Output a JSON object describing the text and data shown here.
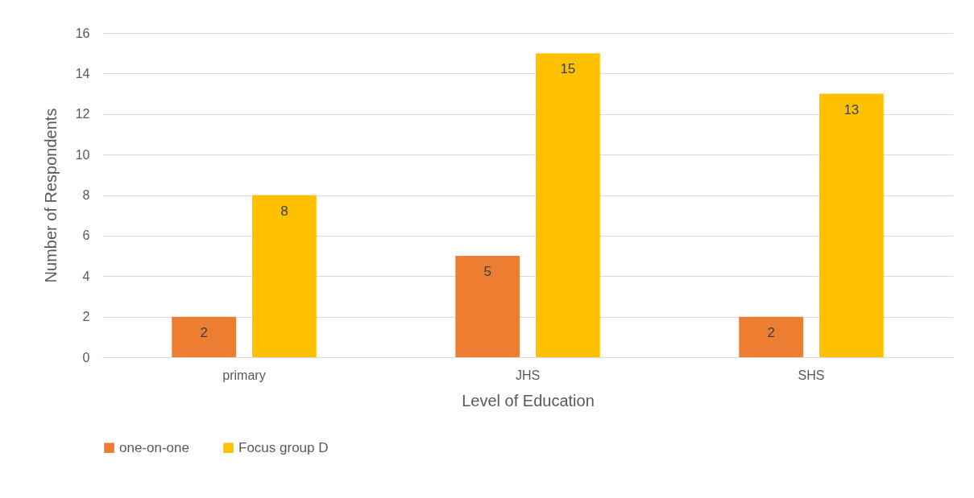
{
  "chart_data": {
    "type": "bar",
    "xlabel": "Level of  Education",
    "ylabel": "Number of Respondents",
    "categories": [
      "primary",
      "JHS",
      "SHS"
    ],
    "series": [
      {
        "name": "one-on-one",
        "color": "#ed7d31",
        "values": [
          2,
          5,
          2
        ]
      },
      {
        "name": "Focus group D",
        "color": "#ffc000",
        "values": [
          8,
          15,
          13
        ]
      }
    ],
    "ylim": [
      0,
      16
    ],
    "yticks": [
      0,
      2,
      4,
      6,
      8,
      10,
      12,
      14,
      16
    ],
    "grid": "y",
    "legend": "bottom",
    "data_labels": true
  }
}
